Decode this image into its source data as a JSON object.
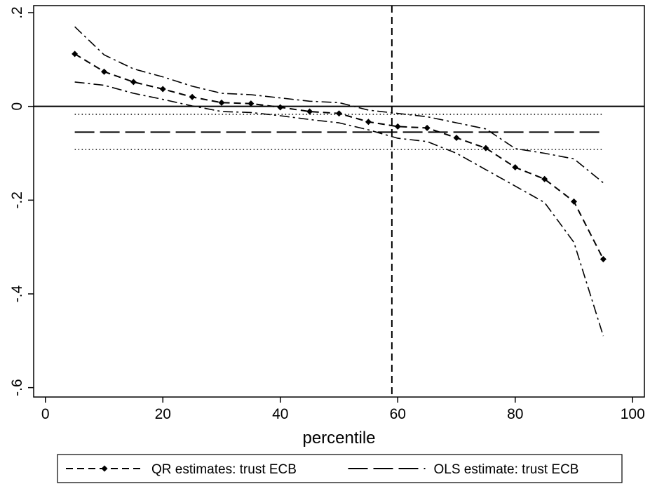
{
  "chart_data": {
    "type": "line",
    "title": "",
    "xlabel": "percentile",
    "ylabel": "",
    "xlim": [
      -2,
      102
    ],
    "ylim": [
      -0.62,
      0.215
    ],
    "xticks": [
      0,
      20,
      40,
      60,
      80,
      100
    ],
    "xtick_labels": [
      "0",
      "20",
      "40",
      "60",
      "80",
      "100"
    ],
    "yticks": [
      -0.6,
      -0.4,
      -0.2,
      0,
      0.2
    ],
    "ytick_labels": [
      "-.6",
      "-.4",
      "-.2",
      "0",
      ".2"
    ],
    "grid": false,
    "legend_position": "bottom",
    "reference_lines": {
      "horizontal_zero": 0,
      "vertical_x": 59
    },
    "x": [
      5,
      10,
      15,
      20,
      25,
      30,
      35,
      40,
      45,
      50,
      55,
      60,
      65,
      70,
      75,
      80,
      85,
      90,
      95
    ],
    "series": [
      {
        "name": "QR estimates: trust ECB",
        "style": "short-dash-diamond",
        "color": "#000000",
        "values": [
          0.112,
          0.074,
          0.052,
          0.037,
          0.02,
          0.008,
          0.006,
          -0.002,
          -0.011,
          -0.015,
          -0.033,
          -0.043,
          -0.046,
          -0.067,
          -0.089,
          -0.13,
          -0.155,
          -0.203,
          -0.326
        ]
      },
      {
        "style": "dash-dot",
        "color": "#000000",
        "values": [
          0.17,
          0.11,
          0.08,
          0.063,
          0.043,
          0.028,
          0.025,
          0.018,
          0.011,
          0.008,
          -0.008,
          -0.015,
          -0.022,
          -0.035,
          -0.048,
          -0.09,
          -0.1,
          -0.112,
          -0.163
        ]
      },
      {
        "style": "dash-dot",
        "color": "#000000",
        "values": [
          0.052,
          0.045,
          0.028,
          0.015,
          0.001,
          -0.011,
          -0.013,
          -0.02,
          -0.028,
          -0.035,
          -0.05,
          -0.068,
          -0.075,
          -0.1,
          -0.135,
          -0.17,
          -0.205,
          -0.29,
          -0.49
        ]
      },
      {
        "name": "OLS estimate: trust ECB",
        "style": "long-dash",
        "color": "#000000",
        "x": [
          5,
          95
        ],
        "values": [
          -0.055,
          -0.055
        ]
      },
      {
        "style": "dotted",
        "color": "#000000",
        "x": [
          5,
          95
        ],
        "values": [
          -0.017,
          -0.017
        ]
      },
      {
        "style": "dotted",
        "color": "#000000",
        "x": [
          5,
          95
        ],
        "values": [
          -0.092,
          -0.092
        ]
      }
    ]
  }
}
